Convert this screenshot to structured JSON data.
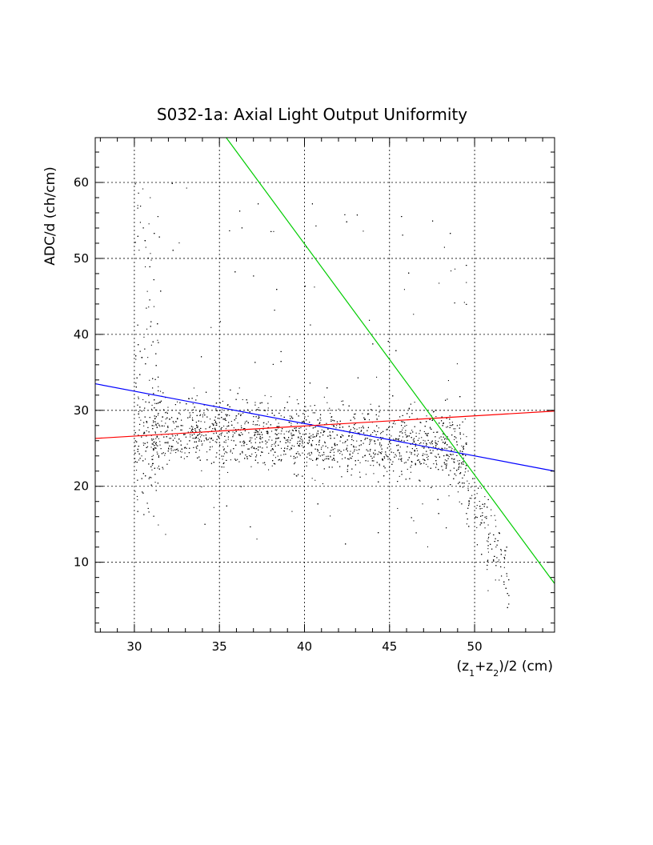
{
  "chart_data": {
    "type": "scatter",
    "title": "S032-1a: Axial Light Output Uniformity",
    "xlabel": "(z1+z2)/2 (cm)",
    "ylabel": "ADC/d (ch/cm)",
    "xlim": [
      27.7,
      54.7
    ],
    "ylim": [
      0.8,
      65.9
    ],
    "x_ticks": [
      30,
      35,
      40,
      45,
      50
    ],
    "y_ticks": [
      10,
      20,
      30,
      40,
      50,
      60
    ],
    "grid": true,
    "colors": {
      "scatter": "#000000",
      "fit_blue": "#0000ff",
      "fit_red": "#ff0000",
      "fit_green": "#00cc00"
    },
    "point_count": 4000,
    "density_profile": [
      {
        "x_range": [
          30,
          31.5
        ],
        "y_median": 28,
        "y_spread": 10,
        "notes": "dense vertical band near x=30-31"
      },
      {
        "x_range": [
          31.5,
          49
        ],
        "y_median": 27,
        "y_spread": 4,
        "notes": "main dense band 22-34"
      },
      {
        "x_range": [
          49,
          51.5
        ],
        "y_median": 22,
        "y_spread": 5,
        "notes": "falling tail, down to ~3 at x=52"
      }
    ],
    "lines": [
      {
        "name": "blue",
        "color": "#0000ff",
        "points": [
          [
            27.7,
            33.5
          ],
          [
            54.7,
            22.0
          ]
        ]
      },
      {
        "name": "red",
        "color": "#ff0000",
        "points": [
          [
            27.7,
            26.3
          ],
          [
            54.7,
            29.9
          ]
        ]
      },
      {
        "name": "green",
        "color": "#00cc00",
        "points": [
          [
            35.4,
            65.9
          ],
          [
            54.7,
            7.2
          ]
        ]
      }
    ]
  }
}
